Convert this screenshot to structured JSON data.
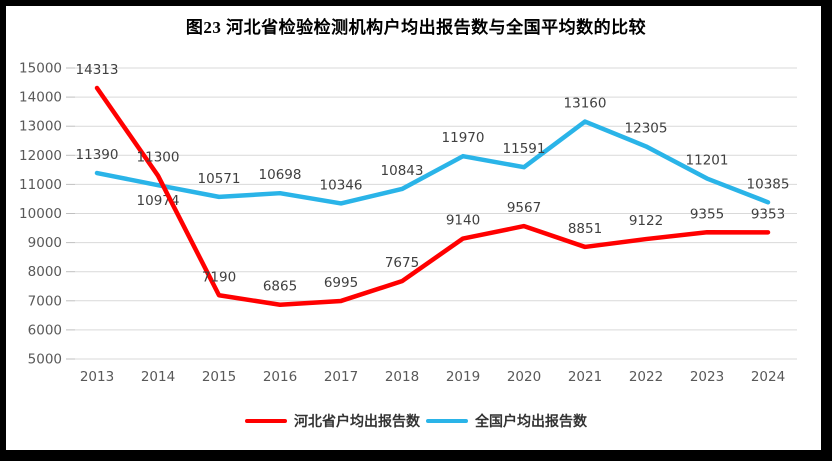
{
  "title": "图23  河北省检验检测机构户均出报告数与全国平均数的比较",
  "chart_data": {
    "type": "line",
    "title": "图23  河北省检验检测机构户均出报告数与全国平均数的比较",
    "categories": [
      "2013",
      "2014",
      "2015",
      "2016",
      "2017",
      "2018",
      "2019",
      "2020",
      "2021",
      "2022",
      "2023",
      "2024"
    ],
    "series": [
      {
        "name": "河北省户均出报告数",
        "color": "#FF0000",
        "values": [
          14313,
          11300,
          7190,
          6865,
          6995,
          7675,
          9140,
          9567,
          8851,
          9122,
          9355,
          9353
        ],
        "label_below_indices": []
      },
      {
        "name": "全国户均出报告数",
        "color": "#2AB4E8",
        "values": [
          11390,
          10974,
          10571,
          10698,
          10346,
          10843,
          11970,
          11591,
          13160,
          12305,
          11201,
          10385
        ],
        "label_below_indices": [
          1
        ]
      }
    ],
    "xlabel": "",
    "ylabel": "",
    "ylim": [
      5000,
      15000
    ],
    "y_ticks": [
      15000,
      14000,
      13000,
      12000,
      11000,
      10000,
      9000,
      8000,
      7000,
      6000,
      5000
    ],
    "grid": "horizontal",
    "gridline_color": "#D9D9D9",
    "tick_color": "#BFBFBF",
    "axis_text_color": "#595959",
    "data_label_color": "#404040",
    "data_labels": true,
    "legend_position": "bottom"
  }
}
